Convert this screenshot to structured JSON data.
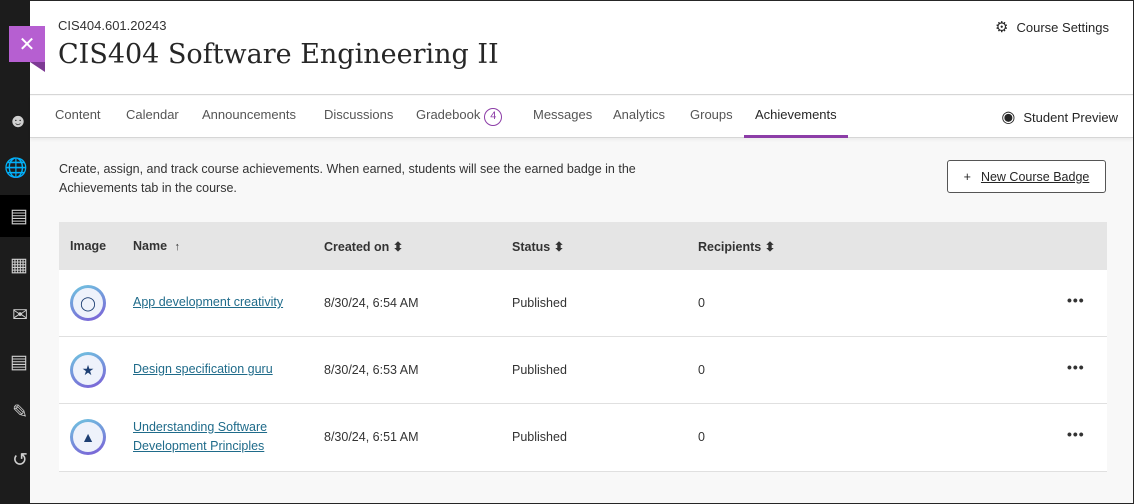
{
  "header": {
    "course_code": "CIS404.601.20243",
    "course_title": "CIS404 Software Engineering II",
    "settings_label": "Course Settings"
  },
  "nav": {
    "tabs": [
      {
        "label": "Content"
      },
      {
        "label": "Calendar"
      },
      {
        "label": "Announcements"
      },
      {
        "label": "Discussions"
      },
      {
        "label": "Gradebook",
        "badge": "4"
      },
      {
        "label": "Messages"
      },
      {
        "label": "Analytics"
      },
      {
        "label": "Groups"
      },
      {
        "label": "Achievements",
        "active": true
      }
    ],
    "student_preview": "Student Preview"
  },
  "main": {
    "description": "Create, assign, and track course achievements. When earned, students will see the earned badge in the Achievements tab in the course.",
    "new_badge_label": "New Course Badge"
  },
  "table": {
    "columns": [
      "Image",
      "Name",
      "Created on",
      "Status",
      "Recipients"
    ],
    "sort_up": "↑",
    "sort_both": "⬍",
    "rows": [
      {
        "name": "App development creativity",
        "created": "8/30/24, 6:54 AM",
        "status": "Published",
        "recipients": "0",
        "icon": "lightbulb-icon"
      },
      {
        "name": "Design specification guru",
        "created": "8/30/24, 6:53 AM",
        "status": "Published",
        "recipients": "0",
        "icon": "star-icon"
      },
      {
        "name": "Understanding Software Development Principles",
        "created": "8/30/24, 6:51 AM",
        "status": "Published",
        "recipients": "0",
        "icon": "mountain-flag-icon"
      }
    ]
  },
  "colors": {
    "accent": "#8c3da7",
    "close": "#b65fd1",
    "link": "#1f6b8a"
  }
}
